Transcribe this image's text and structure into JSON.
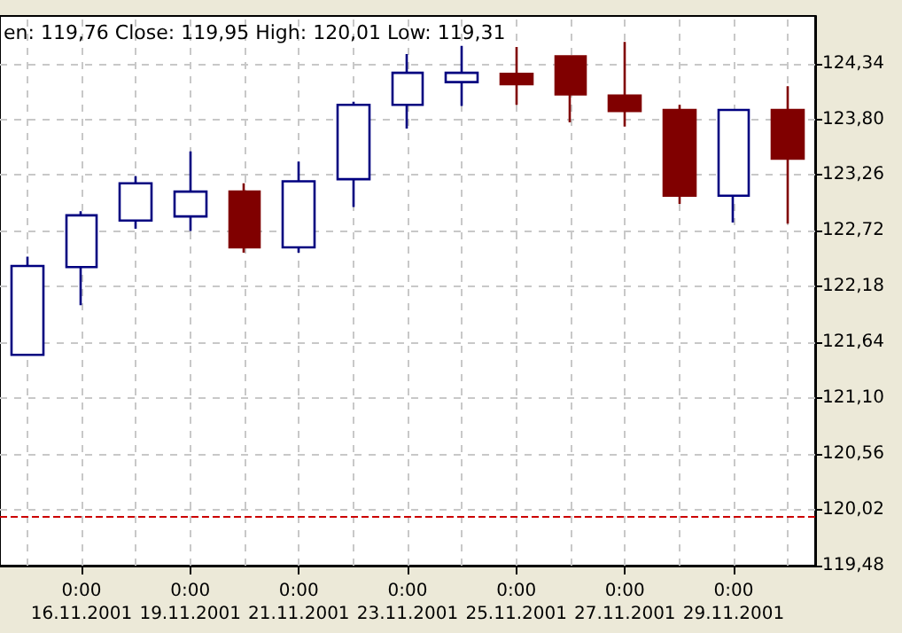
{
  "chart_data": {
    "type": "candlestick",
    "annotations": [
      "en: 119,76 Close: 119,95 High: 120,01 Low: 119,31"
    ],
    "categories": [
      null,
      "0:00\n16.11.2001",
      null,
      "0:00\n19.11.2001",
      null,
      "0:00\n21.11.2001",
      null,
      "0:00\n23.11.2001",
      null,
      "0:00\n25.11.2001",
      null,
      "0:00\n27.11.2001",
      null,
      "0:00\n29.11.2001",
      null
    ],
    "ohlc": [
      [
        121.52,
        122.47,
        121.52,
        122.38
      ],
      [
        122.37,
        122.91,
        122.0,
        122.87
      ],
      [
        122.82,
        123.25,
        122.74,
        123.18
      ],
      [
        122.86,
        123.49,
        122.72,
        123.1
      ],
      [
        123.1,
        123.18,
        122.51,
        122.56
      ],
      [
        122.56,
        123.39,
        122.51,
        123.2
      ],
      [
        123.22,
        123.97,
        122.95,
        123.94
      ],
      [
        123.94,
        124.43,
        123.71,
        124.25
      ],
      [
        124.16,
        124.51,
        123.93,
        124.25
      ],
      [
        124.24,
        124.5,
        123.94,
        124.14
      ],
      [
        124.41,
        124.41,
        123.77,
        124.04
      ],
      [
        124.03,
        124.55,
        123.73,
        123.88
      ],
      [
        123.89,
        123.94,
        122.98,
        123.06
      ],
      [
        123.06,
        123.89,
        122.8,
        123.89
      ],
      [
        123.89,
        124.12,
        122.79,
        123.42
      ]
    ],
    "colors": [
      "#000080",
      "#000080",
      "#000080",
      "#000080",
      "#800000",
      "#000080",
      "#000080",
      "#000080",
      "#000080",
      "#800000",
      "#800000",
      "#800000",
      "#800000",
      "#000080",
      "#800000"
    ],
    "ylim": [
      119.48,
      124.8
    ],
    "yticks": [
      {
        "value": 119.48,
        "label": "119,48"
      },
      {
        "value": 120.02,
        "label": "120,02"
      },
      {
        "value": 120.56,
        "label": "120,56"
      },
      {
        "value": 121.1,
        "label": "121,10"
      },
      {
        "value": 121.64,
        "label": "121,64"
      },
      {
        "value": 122.18,
        "label": "122,18"
      },
      {
        "value": 122.72,
        "label": "122,72"
      },
      {
        "value": 123.26,
        "label": "123,26"
      },
      {
        "value": 123.8,
        "label": "123,80"
      },
      {
        "value": 124.34,
        "label": "124,34"
      }
    ],
    "ref_lines": [
      {
        "axis": "y",
        "value": 119.95,
        "color": "#cc0000",
        "line_style": "dashed"
      }
    ],
    "grid": true
  }
}
